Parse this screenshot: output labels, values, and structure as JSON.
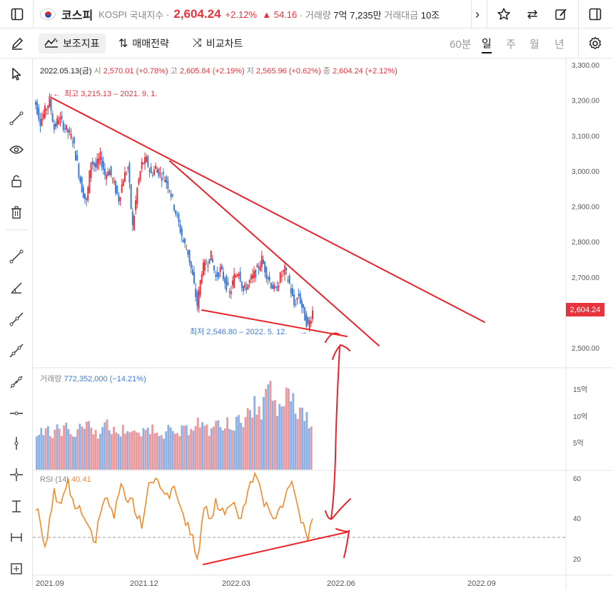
{
  "topbar": {
    "name": "코스피",
    "code": "KOSPI",
    "category": "국내지수",
    "dot": "·",
    "price": "2,604.24",
    "change_pct": "+2.12%",
    "change_val": "▲ 54.16",
    "volume_label": "· 거래량",
    "volume_value": "7억 7,235만",
    "amount_label": "거래대금",
    "amount_value": "10조"
  },
  "toolbar": {
    "indicator_label": "보조지표",
    "strategy_label": "매매전략",
    "compare_label": "비교차트",
    "periods": [
      "60분",
      "일",
      "주",
      "월",
      "년"
    ],
    "active_period": "일"
  },
  "ohlc": {
    "date": "2022.05.13(금)",
    "open_label": "시",
    "open": "2,570.01 (+0.78%)",
    "high_label": "고",
    "high": "2,605.84 (+2.19%)",
    "low_label": "저",
    "low": "2,565.96 (+0.62%)",
    "close_label": "종",
    "close": "2,604.24 (+2.12%)"
  },
  "annotations": {
    "high_marker": "최고 3,215.13 – 2021. 9. 1.",
    "low_marker": "최저 2,546.80 – 2022. 5. 12."
  },
  "volume_pane": {
    "label": "거래량",
    "value": "772,352,000 (−14.21%)",
    "axis": [
      "15억",
      "10억",
      "5억"
    ]
  },
  "rsi_pane": {
    "label": "RSI",
    "period": "(14)",
    "value": "40.41",
    "axis": [
      "60",
      "40",
      "20"
    ]
  },
  "price_axis": [
    "3,300.00",
    "3,200.00",
    "3,100.00",
    "3,000.00",
    "2,900.00",
    "2,800.00",
    "2,700.00",
    "2,600.00",
    "2,500.00"
  ],
  "current_price_tag": "2,604.24",
  "x_axis": [
    "2021.09",
    "2021.12",
    "2022.03",
    "2022.06",
    "2022.09"
  ],
  "colors": {
    "up": "#e8323c",
    "down": "#3f7ad5",
    "rsi": "#f28a2b",
    "drawing": "#e8232a"
  },
  "chart_data": {
    "type": "candlestick",
    "ylim": [
      2480,
      3310
    ],
    "key_points": [
      {
        "label": "최고",
        "date": "2021-09-01",
        "value": 3215.13
      },
      {
        "label": "최저",
        "date": "2022-05-12",
        "value": 2546.8
      }
    ],
    "last": {
      "date": "2022-05-13",
      "open": 2570.01,
      "high": 2605.84,
      "low": 2565.96,
      "close": 2604.24
    },
    "close_path": [
      3190,
      3140,
      3170,
      3200,
      3120,
      3150,
      3130,
      3110,
      3090,
      3020,
      2950,
      2910,
      3030,
      3010,
      3040,
      2990,
      3000,
      2960,
      2920,
      2980,
      3010,
      2840,
      2950,
      3020,
      3030,
      2990,
      3010,
      2990,
      2980,
      2950,
      2900,
      2850,
      2800,
      2770,
      2700,
      2620,
      2720,
      2740,
      2760,
      2700,
      2720,
      2690,
      2650,
      2700,
      2720,
      2660,
      2680,
      2700,
      2720,
      2750,
      2710,
      2680,
      2660,
      2700,
      2720,
      2680,
      2620,
      2650,
      2600,
      2560,
      2604
    ],
    "volume_pct_of_15e": [
      0.45,
      0.5,
      0.55,
      0.42,
      0.5,
      0.48,
      0.52,
      0.5,
      0.45,
      0.5,
      0.55,
      0.6,
      0.5,
      0.45,
      0.5,
      0.55,
      0.5,
      0.48,
      0.45,
      0.5,
      0.5,
      0.48,
      0.42,
      0.45,
      0.5,
      0.52,
      0.5,
      0.48,
      0.45,
      0.5,
      0.42,
      0.45,
      0.48,
      0.5,
      0.55,
      0.6,
      0.55,
      0.5,
      0.48,
      0.6,
      0.55,
      0.5,
      0.58,
      0.55,
      0.6,
      0.62,
      0.7,
      0.65,
      0.8,
      0.7,
      0.9,
      1.02,
      0.8,
      0.75,
      0.7,
      1.05,
      0.85,
      0.7,
      0.75,
      0.65,
      0.6
    ],
    "rsi_values": [
      44,
      38,
      26,
      40,
      55,
      48,
      52,
      60,
      50,
      45,
      42,
      38,
      34,
      28,
      42,
      50,
      46,
      40,
      52,
      55,
      48,
      50,
      40,
      35,
      50,
      58,
      60,
      55,
      52,
      50,
      56,
      48,
      42,
      38,
      32,
      20,
      38,
      46,
      40,
      50,
      44,
      42,
      46,
      48,
      40,
      46,
      54,
      58,
      60,
      52,
      48,
      42,
      40,
      46,
      50,
      56,
      54,
      44,
      38,
      29,
      40
    ]
  }
}
